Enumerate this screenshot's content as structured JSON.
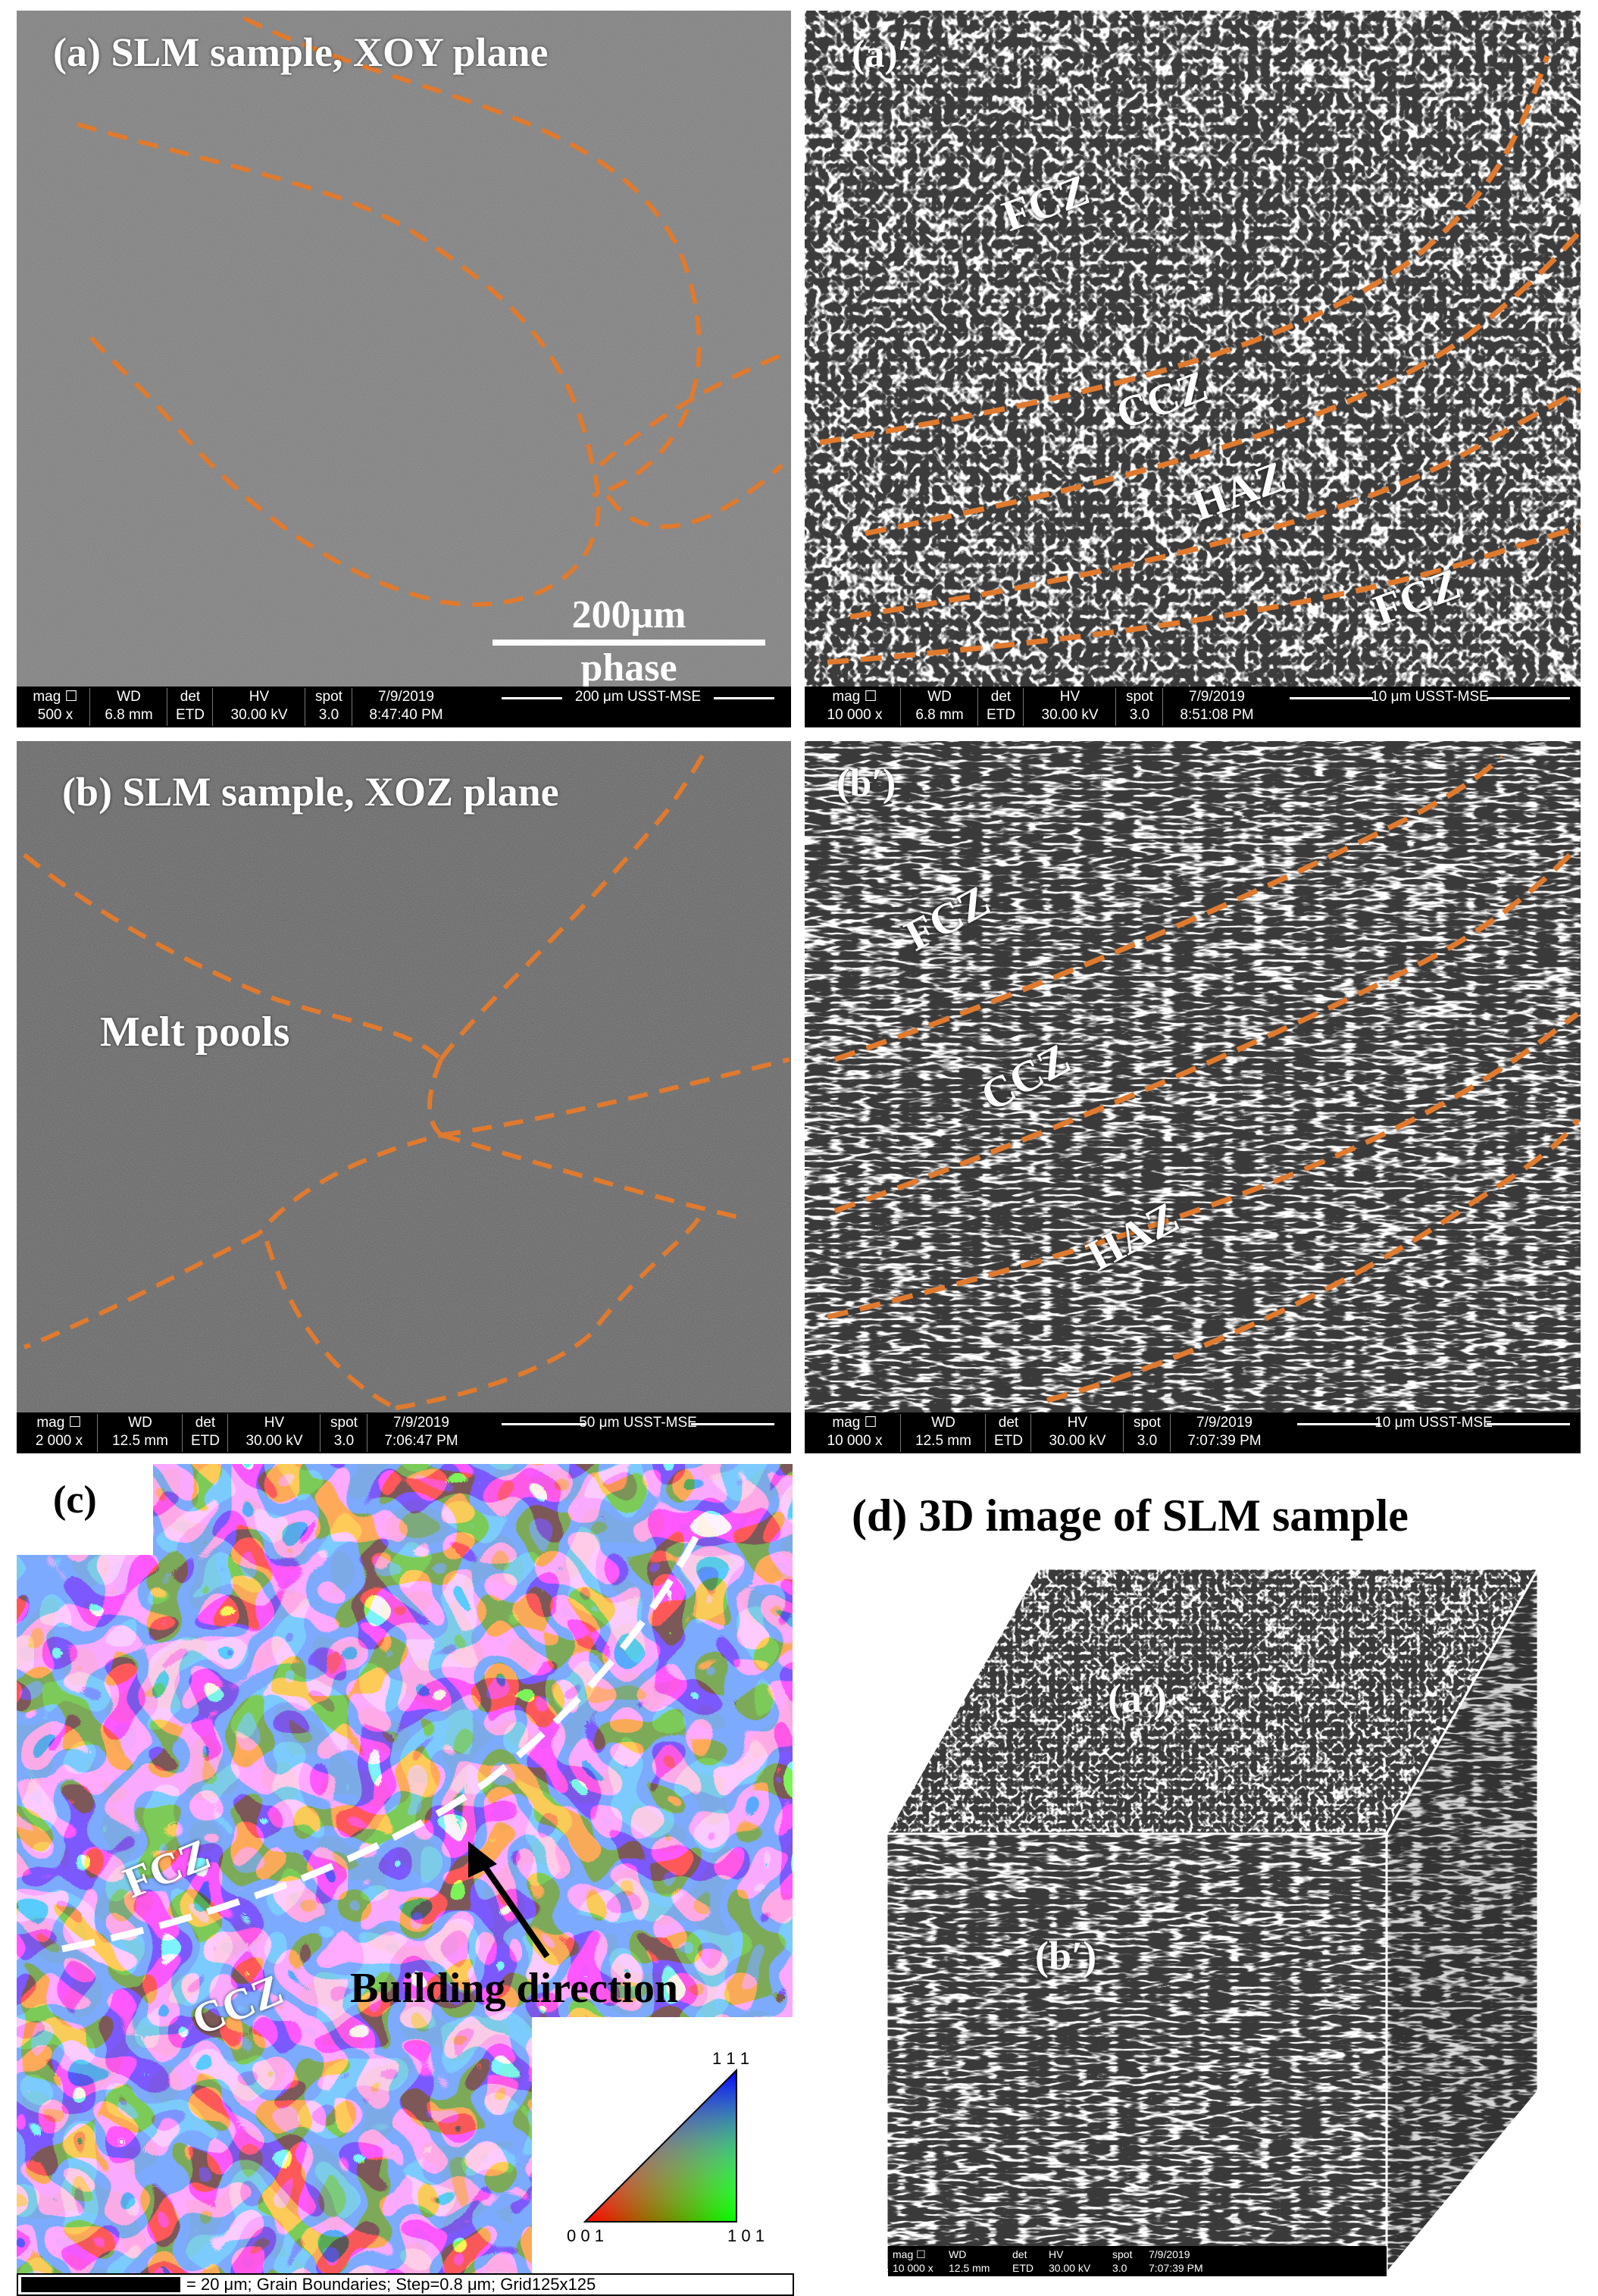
{
  "panel_a": {
    "label": "(a) SLM sample, XOY plane",
    "scale_bar_text": "200μm",
    "scale_bar_sub": "phase",
    "databar": {
      "mag_h": "mag ☐",
      "mag_v": "500 x",
      "wd_h": "WD",
      "wd_v": "6.8 mm",
      "det_h": "det",
      "det_v": "ETD",
      "hv_h": "HV",
      "hv_v": "30.00 kV",
      "spot_h": "spot",
      "spot_v": "3.0",
      "date_h": "7/9/2019",
      "date_v": "8:47:40 PM",
      "scale_v": "200 μm",
      "org": "USST-MSE"
    }
  },
  "panel_a2": {
    "label": "(a)′",
    "zones": [
      "FCZ",
      "CCZ",
      "HAZ",
      "FCZ"
    ],
    "databar": {
      "mag_h": "mag ☐",
      "mag_v": "10 000 x",
      "wd_h": "WD",
      "wd_v": "6.8 mm",
      "det_h": "det",
      "det_v": "ETD",
      "hv_h": "HV",
      "hv_v": "30.00 kV",
      "spot_h": "spot",
      "spot_v": "3.0",
      "date_h": "7/9/2019",
      "date_v": "8:51:08 PM",
      "scale_v": "10 μm",
      "org": "USST-MSE"
    }
  },
  "panel_b": {
    "label": "(b) SLM sample, XOZ plane",
    "annotation": "Melt pools",
    "databar": {
      "mag_h": "mag ☐",
      "mag_v": "2 000 x",
      "wd_h": "WD",
      "wd_v": "12.5 mm",
      "det_h": "det",
      "det_v": "ETD",
      "hv_h": "HV",
      "hv_v": "30.00 kV",
      "spot_h": "spot",
      "spot_v": "3.0",
      "date_h": "7/9/2019",
      "date_v": "7:06:47 PM",
      "scale_v": "50 μm",
      "org": "USST-MSE"
    }
  },
  "panel_b2": {
    "label": "(b′)",
    "zones": [
      "FCZ",
      "CCZ",
      "HAZ"
    ],
    "databar": {
      "mag_h": "mag ☐",
      "mag_v": "10 000 x",
      "wd_h": "WD",
      "wd_v": "12.5 mm",
      "det_h": "det",
      "det_v": "ETD",
      "hv_h": "HV",
      "hv_v": "30.00 kV",
      "spot_h": "spot",
      "spot_v": "3.0",
      "date_h": "7/9/2019",
      "date_v": "7:07:39 PM",
      "scale_v": "10 μm",
      "org": "USST-MSE"
    }
  },
  "panel_c": {
    "label": "(c)",
    "zones": [
      "FCZ",
      "CCZ"
    ],
    "arrow_label": "Building direction",
    "ipf": {
      "top": "1 1 1",
      "left": "0 0 1",
      "right": "1 0 1"
    },
    "footer": "= 20 μm; Grain Boundaries; Step=0.8 μm; Grid125x125"
  },
  "panel_d": {
    "title": "(d) 3D image of SLM sample",
    "top_face": "(a′)",
    "front_face": "(b′)",
    "databar": {
      "mag_h": "mag ☐",
      "mag_v": "10 000 x",
      "wd_h": "WD",
      "wd_v": "12.5 mm",
      "det_h": "det",
      "det_v": "ETD",
      "hv_h": "HV",
      "hv_v": "30.00 kV",
      "spot_h": "spot",
      "spot_v": "3.0",
      "date_h": "7/9/2019",
      "date_v": "7:07:39 PM"
    }
  },
  "colors": {
    "dash": "#e07a2e",
    "background": "#ffffff",
    "sem_gray": "#707070"
  }
}
